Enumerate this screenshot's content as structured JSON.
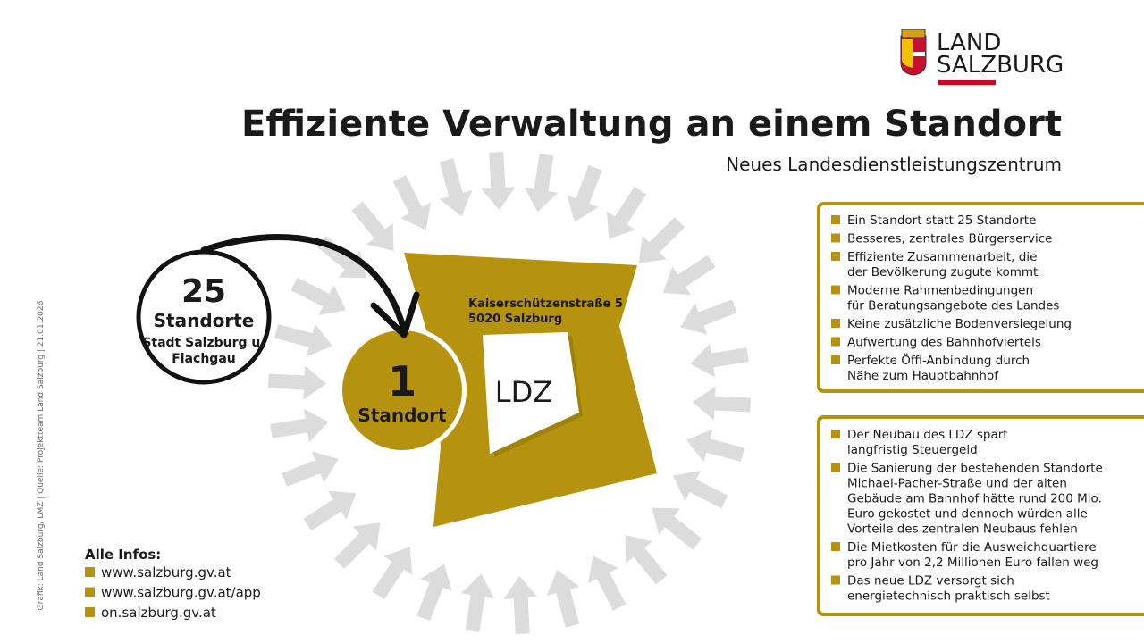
{
  "logo": {
    "line1": "LAND",
    "line2": "SALZBURG"
  },
  "header": {
    "title": "Effiziente Verwaltung an einem Standort",
    "subtitle": "Neues Landesdienstleistungszentrum"
  },
  "side_note": "Grafik: Land Salzburg/ LMZ | Quelle: Projektteam Land Salzburg | 21.01.2026",
  "before": {
    "count": "25",
    "label": "Standorte",
    "detail": [
      "Stadt Salzburg u.",
      "Flachgau"
    ]
  },
  "after": {
    "count": "1",
    "label": "Standort"
  },
  "building": {
    "address": [
      "Kaiserschützenstraße 5",
      "5020 Salzburg"
    ],
    "name": "LDZ"
  },
  "benefits": [
    [
      "Ein Standort statt 25 Standorte"
    ],
    [
      "Besseres, zentrales Bürgerservice"
    ],
    [
      "Effiziente Zusammenarbeit, die",
      "der Bevölkerung zugute kommt"
    ],
    [
      "Moderne Rahmenbedingungen",
      "für Beratungsangebote des Landes"
    ],
    [
      "Keine zusätzliche Bodenversiegelung"
    ],
    [
      "Aufwertung des Bahnhofviertels"
    ],
    [
      "Perfekte Öffi-Anbindung durch",
      "Nähe zum Hauptbahnhof"
    ]
  ],
  "savings": [
    [
      "Der Neubau des LDZ spart",
      "langfristig Steuergeld"
    ],
    [
      "Die Sanierung der bestehenden Standorte",
      "Michael-Pacher-Straße und der alten",
      "Gebäude am Bahnhof hätte rund 200 Mio.",
      "Euro gekostet und dennoch würden alle",
      "Vorteile des zentralen Neubaus fehlen"
    ],
    [
      "Die Mietkosten für die Ausweichquartiere",
      "pro Jahr von 2,2 Millionen Euro fallen weg"
    ],
    [
      "Das neue LDZ versorgt sich",
      "energietechnisch praktisch selbst"
    ]
  ],
  "info": {
    "title": "Alle Infos:",
    "links": [
      "www.salzburg.gv.at",
      "www.salzburg.gv.at/app",
      "on.salzburg.gv.at"
    ]
  }
}
